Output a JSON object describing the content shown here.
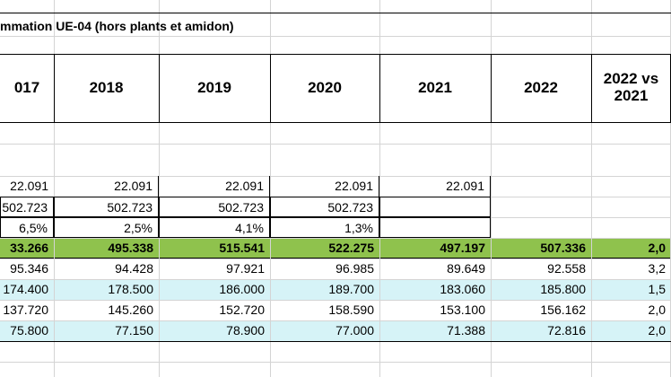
{
  "title": "mmation UE-04 (hors plants et amidon)",
  "headers": [
    "017",
    "2018",
    "2019",
    "2020",
    "2021",
    "2022",
    "2022 vs 2021"
  ],
  "colors": {
    "green_row": "#8fc24d",
    "cyan_row": "#d6f3f7",
    "grid": "#d4d4d4"
  },
  "rows": [
    {
      "name": "row-1",
      "style": "plain",
      "values": [
        "22.091",
        "22.091",
        "22.091",
        "22.091",
        "22.091",
        "",
        ""
      ]
    },
    {
      "name": "row-2",
      "style": "plain",
      "values": [
        "502.723",
        "502.723",
        "502.723",
        "502.723",
        "",
        "",
        ""
      ]
    },
    {
      "name": "row-3",
      "style": "plain",
      "values": [
        "6,5%",
        "2,5%",
        "4,1%",
        "1,3%",
        "",
        "",
        ""
      ]
    },
    {
      "name": "row-4",
      "style": "green",
      "values": [
        "33.266",
        "495.338",
        "515.541",
        "522.275",
        "497.197",
        "507.336",
        "2,0"
      ]
    },
    {
      "name": "row-5",
      "style": "plain",
      "values": [
        "95.346",
        "94.428",
        "97.921",
        "96.985",
        "89.649",
        "92.558",
        "3,2"
      ]
    },
    {
      "name": "row-6",
      "style": "cyan",
      "values": [
        "174.400",
        "178.500",
        "186.000",
        "189.700",
        "183.060",
        "185.800",
        "1,5"
      ]
    },
    {
      "name": "row-7",
      "style": "plain",
      "values": [
        "137.720",
        "145.260",
        "152.720",
        "158.590",
        "153.100",
        "156.162",
        "2,0"
      ]
    },
    {
      "name": "row-8",
      "style": "cyan",
      "values": [
        "75.800",
        "77.150",
        "78.900",
        "77.000",
        "71.388",
        "72.816",
        "2,0"
      ]
    }
  ]
}
